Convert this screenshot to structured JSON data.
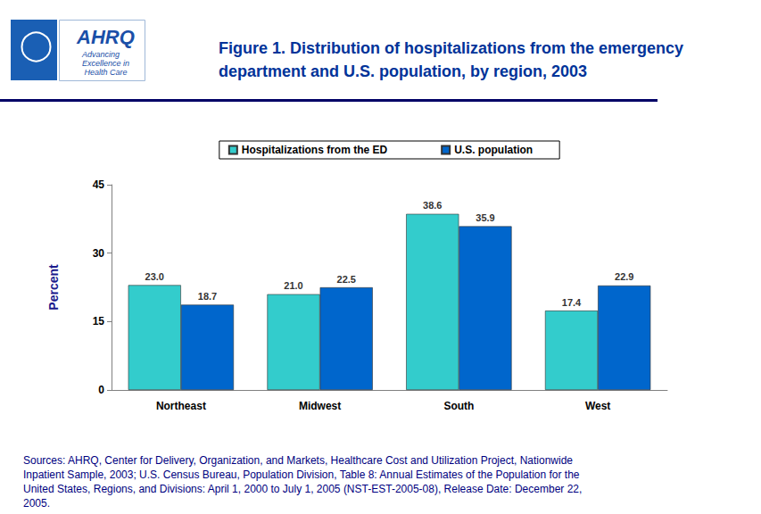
{
  "chart_data": {
    "type": "bar",
    "title": "Figure 1. Distribution of hospitalizations from the emergency department and U.S. population, by region, 2003",
    "y_label": "Percent",
    "categories": [
      "Northeast",
      "Midwest",
      "South",
      "West"
    ],
    "series": [
      {
        "name": "Hospitalizations from the ED",
        "color": "#33cccc",
        "values": [
          23.0,
          21.0,
          38.6,
          17.4
        ],
        "value_labels": [
          "23.0",
          "21.0",
          "38.6",
          "17.4"
        ]
      },
      {
        "name": "U.S. population",
        "color": "#0066cc",
        "values": [
          18.7,
          22.5,
          35.9,
          22.9
        ],
        "value_labels": [
          "18.7",
          "22.5",
          "35.9",
          "22.9"
        ]
      }
    ],
    "ylim": [
      0,
      45
    ],
    "yticks": [
      0,
      15,
      30,
      45
    ],
    "grid": false,
    "legend": "top",
    "data_labels": true,
    "annotations": [
      "AHRQ",
      "Advancing Excellence in Health Care",
      "Sources: AHRQ, Center for Delivery, Organization, and Markets, Healthcare Cost and Utilization Project, Nationwide Inpatient Sample, 2003; U.S. Census Bureau, Population Division, Table 8: Annual Estimates of the Population for the United States, Regions, and Divisions: April 1, 2000 to July 1, 2005 (NST-EST-2005-08), Release Date: December 22, 2005."
    ]
  }
}
